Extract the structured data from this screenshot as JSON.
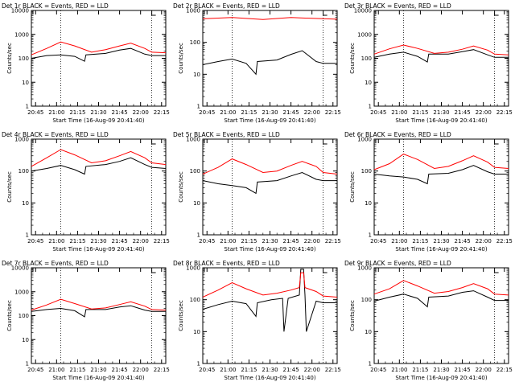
{
  "figure": {
    "start_time_label": "Start Time (16-Aug-09 20:41:40)",
    "ylabel": "Counts/sec",
    "x_ticks": [
      "20:45",
      "21:00",
      "21:15",
      "21:30",
      "21:45",
      "22:00",
      "22:15"
    ],
    "colors": {
      "black_series": "#000000",
      "red_series": "#ff0000",
      "axis": "#000000",
      "background": "#ffffff"
    }
  },
  "chart_data": [
    {
      "type": "line",
      "title": "Det 1r BLACK = Events, RED = LLD",
      "ylim": [
        1,
        10000
      ],
      "yscale": "log",
      "y_ticks": [
        "1",
        "10",
        "100",
        "1000",
        "10000"
      ],
      "x_range_min": [
        -3,
        93
      ],
      "vlines_min": [
        18,
        83
      ],
      "series": [
        {
          "name": "BLACK = Events",
          "color": "#000000",
          "x": [
            -3,
            8,
            18,
            28,
            35,
            36,
            50,
            60,
            68,
            78,
            83,
            93
          ],
          "y": [
            100,
            130,
            140,
            120,
            75,
            140,
            160,
            220,
            260,
            150,
            130,
            130
          ]
        },
        {
          "name": "RED = LLD",
          "color": "#ff0000",
          "x": [
            -3,
            8,
            18,
            28,
            40,
            50,
            60,
            68,
            78,
            83,
            93
          ],
          "y": [
            140,
            260,
            480,
            330,
            180,
            230,
            330,
            430,
            260,
            180,
            170
          ]
        }
      ]
    },
    {
      "type": "line",
      "title": "Det 2r BLACK = Events, RED = LLD",
      "ylim": [
        1,
        1000
      ],
      "yscale": "log",
      "y_ticks": [
        "1",
        "10",
        "100",
        "1000"
      ],
      "x_range_min": [
        -3,
        93
      ],
      "vlines_min": [
        18,
        83
      ],
      "series": [
        {
          "name": "BLACK = Events",
          "color": "#000000",
          "x": [
            -3,
            8,
            18,
            28,
            35,
            36,
            50,
            60,
            68,
            78,
            83,
            93
          ],
          "y": [
            20,
            25,
            30,
            22,
            10,
            25,
            28,
            42,
            55,
            25,
            22,
            22
          ]
        },
        {
          "name": "RED = LLD",
          "color": "#ff0000",
          "x": [
            -3,
            18,
            40,
            60,
            83,
            93
          ],
          "y": [
            550,
            600,
            520,
            600,
            550,
            530
          ]
        }
      ]
    },
    {
      "type": "line",
      "title": "Det 3r BLACK = Events, RED = LLD",
      "ylim": [
        1,
        10000
      ],
      "yscale": "log",
      "y_ticks": [
        "1",
        "10",
        "100",
        "1000",
        "10000"
      ],
      "x_range_min": [
        -3,
        93
      ],
      "vlines_min": [
        18,
        83
      ],
      "series": [
        {
          "name": "BLACK = Events",
          "color": "#000000",
          "x": [
            -3,
            8,
            18,
            28,
            35,
            36,
            50,
            60,
            68,
            78,
            83,
            93
          ],
          "y": [
            110,
            150,
            180,
            120,
            70,
            150,
            150,
            190,
            230,
            140,
            110,
            110
          ]
        },
        {
          "name": "RED = LLD",
          "color": "#ff0000",
          "x": [
            -3,
            8,
            18,
            28,
            40,
            50,
            60,
            68,
            78,
            83,
            93
          ],
          "y": [
            150,
            250,
            360,
            260,
            160,
            180,
            240,
            330,
            220,
            150,
            140
          ]
        }
      ]
    },
    {
      "type": "line",
      "title": "Det 4r BLACK = Events, RED = LLD",
      "ylim": [
        1,
        1000
      ],
      "yscale": "log",
      "y_ticks": [
        "1",
        "10",
        "100",
        "1000"
      ],
      "x_range_min": [
        -3,
        93
      ],
      "vlines_min": [
        18,
        83
      ],
      "series": [
        {
          "name": "BLACK = Events",
          "color": "#000000",
          "x": [
            -3,
            8,
            18,
            28,
            35,
            36,
            50,
            60,
            68,
            78,
            83,
            93
          ],
          "y": [
            100,
            120,
            150,
            110,
            80,
            140,
            160,
            200,
            260,
            160,
            130,
            120
          ]
        },
        {
          "name": "RED = LLD",
          "color": "#ff0000",
          "x": [
            -3,
            8,
            18,
            28,
            40,
            50,
            60,
            68,
            78,
            83,
            93
          ],
          "y": [
            140,
            260,
            470,
            320,
            180,
            210,
            300,
            410,
            260,
            180,
            160
          ]
        }
      ]
    },
    {
      "type": "line",
      "title": "Det 5r BLACK = Events, RED = LLD",
      "ylim": [
        1,
        1000
      ],
      "yscale": "log",
      "y_ticks": [
        "1",
        "10",
        "100",
        "1000"
      ],
      "x_range_min": [
        -3,
        93
      ],
      "vlines_min": [
        18,
        83
      ],
      "series": [
        {
          "name": "BLACK = Events",
          "color": "#000000",
          "x": [
            -3,
            8,
            18,
            28,
            35,
            36,
            50,
            60,
            68,
            78,
            83,
            93
          ],
          "y": [
            50,
            40,
            35,
            30,
            20,
            45,
            50,
            70,
            90,
            55,
            50,
            50
          ]
        },
        {
          "name": "RED = LLD",
          "color": "#ff0000",
          "x": [
            -3,
            8,
            18,
            28,
            40,
            50,
            60,
            68,
            78,
            83,
            93
          ],
          "y": [
            80,
            130,
            240,
            160,
            90,
            100,
            150,
            200,
            140,
            90,
            80
          ]
        }
      ]
    },
    {
      "type": "line",
      "title": "Det 6r BLACK = Events, RED = LLD",
      "ylim": [
        1,
        1000
      ],
      "yscale": "log",
      "y_ticks": [
        "1",
        "10",
        "100",
        "1000"
      ],
      "x_range_min": [
        -3,
        93
      ],
      "vlines_min": [
        18,
        83
      ],
      "series": [
        {
          "name": "BLACK = Events",
          "color": "#000000",
          "x": [
            -3,
            8,
            18,
            28,
            35,
            36,
            50,
            60,
            68,
            78,
            83,
            93
          ],
          "y": [
            80,
            70,
            65,
            55,
            40,
            80,
            85,
            110,
            150,
            95,
            80,
            80
          ]
        },
        {
          "name": "RED = LLD",
          "color": "#ff0000",
          "x": [
            -3,
            8,
            18,
            28,
            40,
            50,
            60,
            68,
            78,
            83,
            93
          ],
          "y": [
            110,
            170,
            340,
            230,
            120,
            140,
            210,
            300,
            190,
            130,
            120
          ]
        }
      ]
    },
    {
      "type": "line",
      "title": "Det 7r BLACK = Events, RED = LLD",
      "ylim": [
        1,
        10000
      ],
      "yscale": "log",
      "y_ticks": [
        "1",
        "10",
        "100",
        "1000",
        "10000"
      ],
      "x_range_min": [
        -3,
        93
      ],
      "vlines_min": [
        18,
        83
      ],
      "series": [
        {
          "name": "BLACK = Events",
          "color": "#000000",
          "x": [
            -3,
            8,
            18,
            28,
            35,
            36,
            50,
            60,
            68,
            78,
            83,
            93
          ],
          "y": [
            150,
            180,
            200,
            160,
            90,
            180,
            180,
            230,
            260,
            170,
            150,
            150
          ]
        },
        {
          "name": "RED = LLD",
          "color": "#ff0000",
          "x": [
            -3,
            8,
            18,
            28,
            40,
            50,
            60,
            68,
            78,
            83,
            93
          ],
          "y": [
            170,
            280,
            480,
            320,
            190,
            210,
            290,
            380,
            250,
            180,
            170
          ]
        }
      ]
    },
    {
      "type": "line",
      "title": "Det 8r BLACK = Events, RED = LLD",
      "ylim": [
        1,
        1000
      ],
      "yscale": "log",
      "y_ticks": [
        "1",
        "10",
        "100",
        "1000"
      ],
      "x_range_min": [
        -3,
        93
      ],
      "vlines_min": [
        18,
        83
      ],
      "series": [
        {
          "name": "BLACK = Events",
          "color": "#000000",
          "x": [
            -3,
            8,
            18,
            28,
            35,
            36,
            46,
            54,
            55,
            58,
            66,
            67,
            69,
            70,
            71,
            78,
            83,
            93
          ],
          "y": [
            50,
            70,
            90,
            75,
            30,
            80,
            100,
            110,
            10,
            110,
            140,
            900,
            900,
            140,
            10,
            90,
            80,
            80
          ]
        },
        {
          "name": "RED = LLD",
          "color": "#ff0000",
          "x": [
            -3,
            8,
            18,
            28,
            40,
            50,
            60,
            66,
            67,
            69,
            70,
            78,
            83,
            93
          ],
          "y": [
            120,
            200,
            340,
            220,
            140,
            160,
            200,
            240,
            700,
            700,
            240,
            180,
            130,
            120
          ]
        }
      ]
    },
    {
      "type": "line",
      "title": "Det 9r BLACK = Events, RED = LLD",
      "ylim": [
        1,
        1000
      ],
      "yscale": "log",
      "y_ticks": [
        "1",
        "10",
        "100",
        "1000"
      ],
      "x_range_min": [
        -3,
        93
      ],
      "vlines_min": [
        18,
        83
      ],
      "series": [
        {
          "name": "BLACK = Events",
          "color": "#000000",
          "x": [
            -3,
            8,
            18,
            28,
            35,
            36,
            50,
            60,
            68,
            78,
            83,
            93
          ],
          "y": [
            90,
            120,
            150,
            110,
            60,
            120,
            130,
            170,
            190,
            120,
            95,
            95
          ]
        },
        {
          "name": "RED = LLD",
          "color": "#ff0000",
          "x": [
            -3,
            8,
            18,
            28,
            40,
            50,
            60,
            68,
            78,
            83,
            93
          ],
          "y": [
            150,
            220,
            400,
            270,
            160,
            180,
            240,
            320,
            220,
            150,
            140
          ]
        }
      ]
    }
  ]
}
